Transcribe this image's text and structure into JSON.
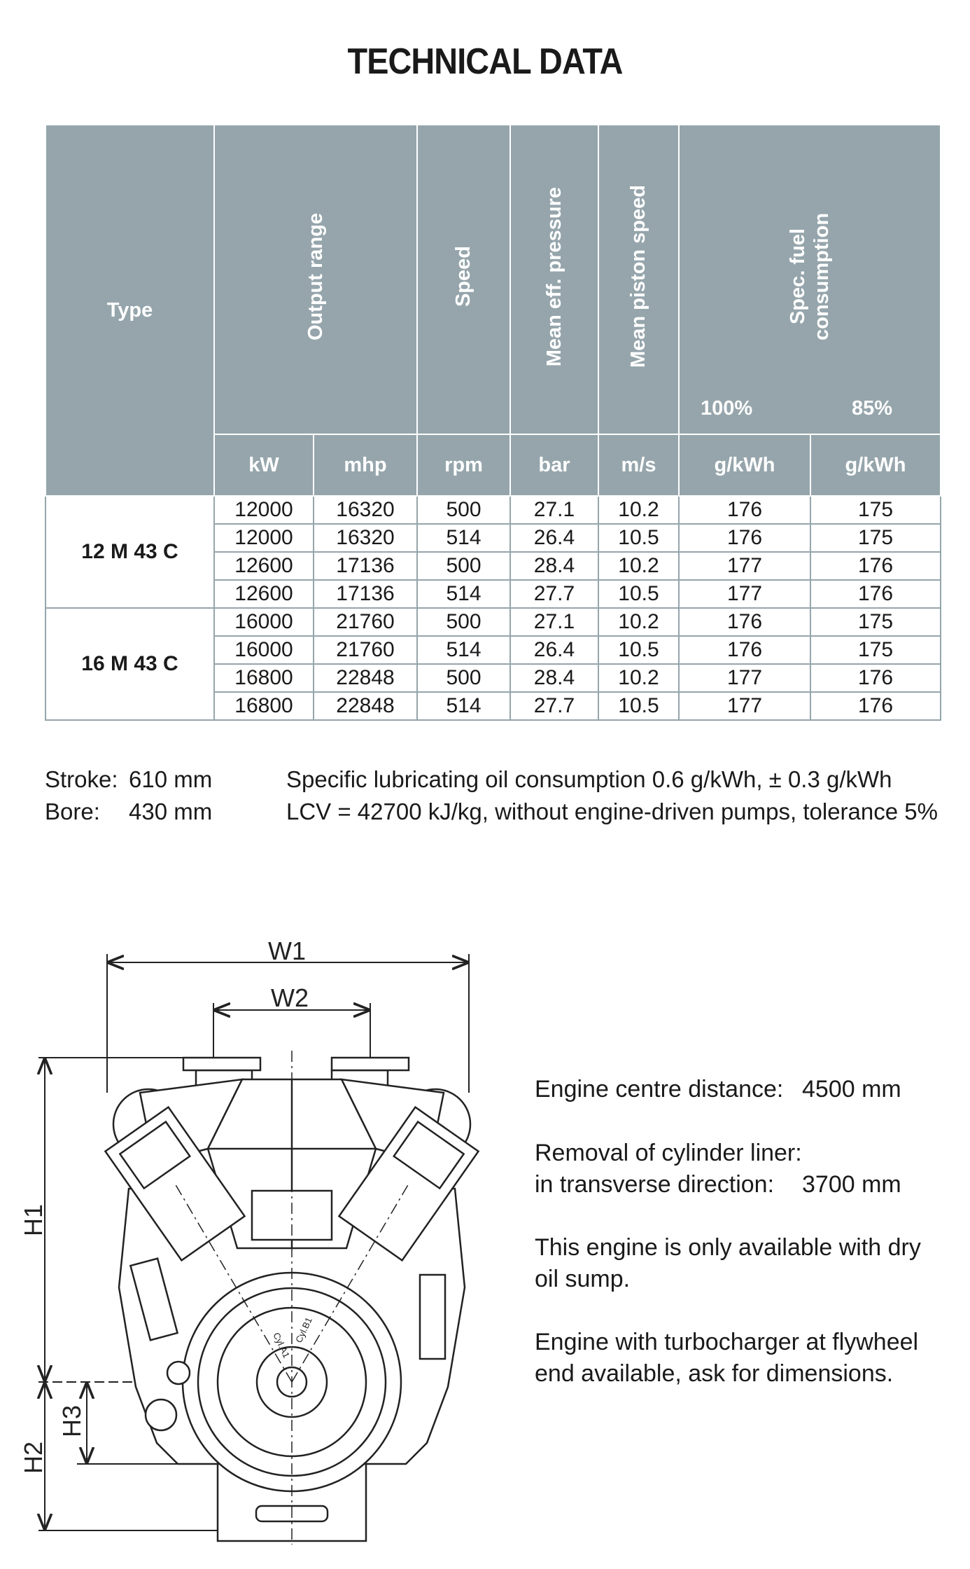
{
  "title": "TECHNICAL DATA",
  "table": {
    "header": {
      "type": "Type",
      "output_range": "Output range",
      "speed": "Speed",
      "mean_eff_pressure": "Mean eff. pressure",
      "mean_piston_speed": "Mean piston speed",
      "spec_fuel": "Spec. fuel consumption",
      "load_100": "100%",
      "load_85": "85%"
    },
    "units": [
      "kW",
      "mhp",
      "rpm",
      "bar",
      "m/s",
      "g/kWh",
      "g/kWh"
    ],
    "groups": [
      {
        "type": "12 M 43 C",
        "rows": [
          [
            "12000",
            "16320",
            "500",
            "27.1",
            "10.2",
            "176",
            "175"
          ],
          [
            "12000",
            "16320",
            "514",
            "26.4",
            "10.5",
            "176",
            "175"
          ],
          [
            "12600",
            "17136",
            "500",
            "28.4",
            "10.2",
            "177",
            "176"
          ],
          [
            "12600",
            "17136",
            "514",
            "27.7",
            "10.5",
            "177",
            "176"
          ]
        ]
      },
      {
        "type": "16 M 43 C",
        "rows": [
          [
            "16000",
            "21760",
            "500",
            "27.1",
            "10.2",
            "176",
            "175"
          ],
          [
            "16000",
            "21760",
            "514",
            "26.4",
            "10.5",
            "176",
            "175"
          ],
          [
            "16800",
            "22848",
            "500",
            "28.4",
            "10.2",
            "177",
            "176"
          ],
          [
            "16800",
            "22848",
            "514",
            "27.7",
            "10.5",
            "177",
            "176"
          ]
        ]
      }
    ]
  },
  "notes": {
    "stroke_label": "Stroke:",
    "stroke": "610 mm",
    "bore_label": "Bore:",
    "bore": "430 mm",
    "lube": "Specific lubricating oil consumption 0.6 g/kWh, ± 0.3 g/kWh",
    "lcv": "LCV = 42700 kJ/kg, without engine-driven pumps, tolerance 5%"
  },
  "drawing": {
    "labels": {
      "w1": "W1",
      "w2": "W2",
      "h1": "H1",
      "h2": "H2",
      "h3": "H3"
    },
    "cylinders": [
      "Cyl.A1",
      "Cyl.B1"
    ]
  },
  "info": {
    "centre_label": "Engine centre distance:",
    "centre_value": "4500 mm",
    "liner_label": "Removal of cylinder liner:",
    "liner_direction": "in transverse direction:",
    "liner_value": "3700 mm",
    "dry_sump": "This engine is only available with dry oil sump.",
    "turbo": "Engine with turbocharger at flywheel end available, ask for dimensions."
  }
}
